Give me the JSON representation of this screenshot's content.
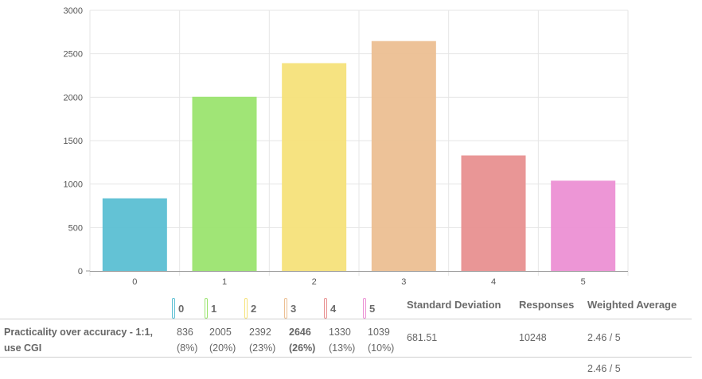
{
  "chart_data": {
    "type": "bar",
    "categories": [
      "0",
      "1",
      "2",
      "3",
      "4",
      "5"
    ],
    "values": [
      836,
      2005,
      2392,
      2646,
      1330,
      1039
    ],
    "colors": [
      "#5bbfd3",
      "#9be46f",
      "#f5e27a",
      "#ecbf92",
      "#e89090",
      "#ec90d4"
    ],
    "ylim": [
      0,
      3000
    ],
    "yticks": [
      0,
      500,
      1000,
      1500,
      2000,
      2500,
      3000
    ],
    "title": "",
    "xlabel": "",
    "ylabel": ""
  },
  "table": {
    "options": [
      {
        "label": "0",
        "color": "#5bbfd3"
      },
      {
        "label": "1",
        "color": "#9be46f"
      },
      {
        "label": "2",
        "color": "#f5e27a"
      },
      {
        "label": "3",
        "color": "#ecbf92"
      },
      {
        "label": "4",
        "color": "#e89090"
      },
      {
        "label": "5",
        "color": "#ec90d4"
      }
    ],
    "headers": {
      "std_dev": "Standard Deviation",
      "responses": "Responses",
      "weighted_avg": "Weighted Average"
    },
    "row": {
      "question": "Practicality over accuracy - 1:1, use CGI",
      "counts": [
        {
          "count": "836",
          "pct": "(8%)"
        },
        {
          "count": "2005",
          "pct": "(20%)"
        },
        {
          "count": "2392",
          "pct": "(23%)"
        },
        {
          "count": "2646",
          "pct": "(26%)"
        },
        {
          "count": "1330",
          "pct": "(13%)"
        },
        {
          "count": "1039",
          "pct": "(10%)"
        }
      ],
      "std_dev": "681.51",
      "responses": "10248",
      "weighted_avg": "2.46 / 5"
    },
    "footer_weighted_avg": "2.46 / 5"
  }
}
